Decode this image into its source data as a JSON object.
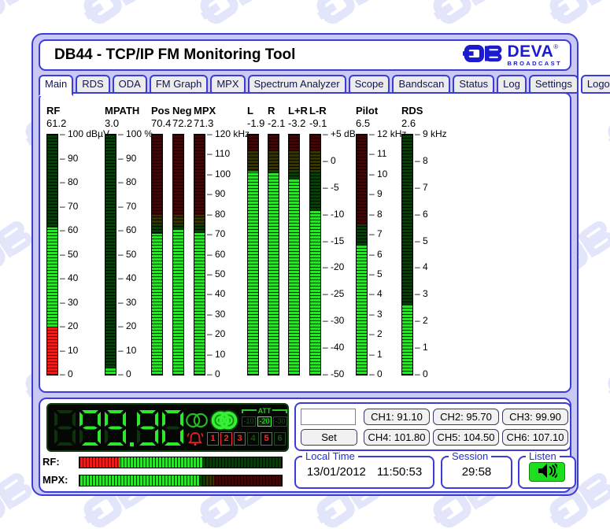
{
  "window_title": "DB44 - TCP/IP FM Monitoring Tool",
  "logo": {
    "brand": "DEVA",
    "reg": "®",
    "sub": "BROADCAST"
  },
  "tabs": {
    "items": [
      {
        "label": "Main",
        "active": true
      },
      {
        "label": "RDS",
        "active": false
      },
      {
        "label": "ODA",
        "active": false
      },
      {
        "label": "FM Graph",
        "active": false
      },
      {
        "label": "MPX",
        "active": false
      },
      {
        "label": "Spectrum Analyzer",
        "active": false
      },
      {
        "label": "Scope",
        "active": false
      },
      {
        "label": "Bandscan",
        "active": false
      },
      {
        "label": "Status",
        "active": false
      },
      {
        "label": "Log",
        "active": false
      },
      {
        "label": "Settings",
        "active": false
      }
    ],
    "logout": {
      "label": "Logout"
    }
  },
  "meters": [
    {
      "id": "rf",
      "label": "RF",
      "value_display": "61.2",
      "value": 61.2,
      "ticks": [
        100,
        90,
        80,
        70,
        60,
        50,
        40,
        30,
        20,
        10,
        0
      ],
      "tick_labels": [
        "100 dBµV",
        "90",
        "80",
        "70",
        "60",
        "50",
        "40",
        "30",
        "20",
        "10",
        "0"
      ],
      "zones": [
        {
          "from": 0,
          "to": 20,
          "color": "red"
        },
        {
          "from": 20,
          "to": 100,
          "color": "green"
        }
      ]
    },
    {
      "id": "mpath",
      "label": "MPATH",
      "value_display": "3.0",
      "value": 3.0,
      "ticks": [
        100,
        90,
        80,
        70,
        60,
        50,
        40,
        30,
        20,
        10,
        0
      ],
      "tick_labels": [
        "100 %",
        "90",
        "80",
        "70",
        "60",
        "50",
        "40",
        "30",
        "20",
        "10",
        "0"
      ],
      "zones": [
        {
          "from": 0,
          "to": 100,
          "color": "green"
        }
      ]
    },
    {
      "id": "pos",
      "label": "Pos",
      "value_display": "70.4",
      "value": 70.4,
      "ticks": [
        120,
        110,
        100,
        90,
        80,
        70,
        60,
        50,
        40,
        30,
        20,
        10,
        0
      ],
      "tick_labels": null,
      "zones": [
        {
          "from": 0,
          "to": 75,
          "color": "green"
        },
        {
          "from": 75,
          "to": 80,
          "color": "yellow"
        },
        {
          "from": 80,
          "to": 120,
          "color": "red"
        }
      ]
    },
    {
      "id": "neg",
      "label": "Neg",
      "value_display": "72.2",
      "value": 72.2,
      "ticks": [
        120,
        110,
        100,
        90,
        80,
        70,
        60,
        50,
        40,
        30,
        20,
        10,
        0
      ],
      "tick_labels": null,
      "zones": [
        {
          "from": 0,
          "to": 75,
          "color": "green"
        },
        {
          "from": 75,
          "to": 80,
          "color": "yellow"
        },
        {
          "from": 80,
          "to": 120,
          "color": "red"
        }
      ]
    },
    {
      "id": "mpx",
      "label": "MPX",
      "value_display": "71.3",
      "value": 71.3,
      "ticks": [
        120,
        110,
        100,
        90,
        80,
        70,
        60,
        50,
        40,
        30,
        20,
        10,
        0
      ],
      "tick_labels": [
        "120 kHz",
        "110",
        "100",
        "90",
        "80",
        "70",
        "60",
        "50",
        "40",
        "30",
        "20",
        "10",
        "0"
      ],
      "zones": [
        {
          "from": 0,
          "to": 75,
          "color": "green"
        },
        {
          "from": 75,
          "to": 80,
          "color": "yellow"
        },
        {
          "from": 80,
          "to": 120,
          "color": "red"
        }
      ]
    },
    {
      "id": "l",
      "label": "L",
      "value_display": "-1.9",
      "value": -1.9,
      "ticks": [
        5,
        0,
        -5,
        -10,
        -15,
        -20,
        -25,
        -30,
        -40,
        -50
      ],
      "tick_labels": null,
      "zones": [
        {
          "from": -50,
          "to": -2,
          "color": "green"
        },
        {
          "from": -2,
          "to": 2,
          "color": "yellow"
        },
        {
          "from": 2,
          "to": 5,
          "color": "red"
        }
      ]
    },
    {
      "id": "r",
      "label": "R",
      "value_display": "-2.1",
      "value": -2.1,
      "ticks": [
        5,
        0,
        -5,
        -10,
        -15,
        -20,
        -25,
        -30,
        -40,
        -50
      ],
      "tick_labels": null,
      "zones": [
        {
          "from": -50,
          "to": -2,
          "color": "green"
        },
        {
          "from": -2,
          "to": 2,
          "color": "yellow"
        },
        {
          "from": 2,
          "to": 5,
          "color": "red"
        }
      ]
    },
    {
      "id": "l+r",
      "label": "L+R",
      "value_display": "-3.2",
      "value": -3.2,
      "ticks": [
        5,
        0,
        -5,
        -10,
        -15,
        -20,
        -25,
        -30,
        -40,
        -50
      ],
      "tick_labels": null,
      "zones": [
        {
          "from": -50,
          "to": -2,
          "color": "green"
        },
        {
          "from": -2,
          "to": 2,
          "color": "yellow"
        },
        {
          "from": 2,
          "to": 5,
          "color": "red"
        }
      ]
    },
    {
      "id": "l-r",
      "label": "L-R",
      "value_display": "-9.1",
      "value": -9.1,
      "ticks": [
        5,
        0,
        -5,
        -10,
        -15,
        -20,
        -25,
        -30,
        -40,
        -50
      ],
      "tick_labels": [
        "+5 dB",
        "0",
        "-5",
        "-10",
        "-15",
        "-20",
        "-25",
        "-30",
        "-40",
        "-50"
      ],
      "zones": [
        {
          "from": -50,
          "to": -2,
          "color": "green"
        },
        {
          "from": -2,
          "to": 2,
          "color": "yellow"
        },
        {
          "from": 2,
          "to": 5,
          "color": "red"
        }
      ]
    },
    {
      "id": "pilot",
      "label": "Pilot",
      "value_display": "6.5",
      "value": 6.5,
      "ticks": [
        12,
        11,
        10,
        9,
        8,
        7,
        6,
        5,
        4,
        3,
        2,
        1,
        0
      ],
      "tick_labels": [
        "12 kHz",
        "11",
        "10",
        "9",
        "8",
        "7",
        "6",
        "5",
        "4",
        "3",
        "2",
        "1",
        "0"
      ],
      "zones": [
        {
          "from": 0,
          "to": 7.5,
          "color": "green"
        },
        {
          "from": 7.5,
          "to": 12,
          "color": "red"
        }
      ]
    },
    {
      "id": "rds",
      "label": "RDS",
      "value_display": "2.6",
      "value": 2.6,
      "ticks": [
        9,
        8,
        7,
        6,
        5,
        4,
        3,
        2,
        1,
        0
      ],
      "tick_labels": [
        "9 kHz",
        "8",
        "7",
        "6",
        "5",
        "4",
        "3",
        "2",
        "1",
        "0"
      ],
      "zones": [
        {
          "from": 0,
          "to": 9,
          "color": "green"
        }
      ]
    }
  ],
  "led": {
    "frequency": "99.90",
    "indicators": [
      {
        "name": "mono-indicator",
        "active": false
      },
      {
        "name": "stereo-indicator",
        "active": true
      }
    ],
    "att": {
      "label": "ATT",
      "options": [
        {
          "label": "-10",
          "active": false
        },
        {
          "label": "-20",
          "active": true
        },
        {
          "label": "-30",
          "active": false
        }
      ]
    },
    "alarm_bell": {
      "active": true
    },
    "alarms": [
      {
        "label": "1",
        "active": true
      },
      {
        "label": "2",
        "active": true
      },
      {
        "label": "3",
        "active": true
      },
      {
        "label": "4",
        "active": false
      },
      {
        "label": "5",
        "active": true
      },
      {
        "label": "6",
        "active": false
      }
    ]
  },
  "hbars": [
    {
      "id": "rf",
      "label": "RF:",
      "value": 61.2,
      "min": 0,
      "max": 100,
      "zones": [
        {
          "from": 0,
          "to": 20,
          "color": "red"
        },
        {
          "from": 20,
          "to": 100,
          "color": "green"
        }
      ]
    },
    {
      "id": "mpx",
      "label": "MPX:",
      "value": 71.3,
      "min": 0,
      "max": 120,
      "zones": [
        {
          "from": 0,
          "to": 75,
          "color": "green"
        },
        {
          "from": 75,
          "to": 80,
          "color": "yellow"
        },
        {
          "from": 80,
          "to": 120,
          "color": "red"
        }
      ]
    }
  ],
  "tuner": {
    "frequency_input": {
      "value": "",
      "placeholder": ""
    },
    "set_button": "Set",
    "channels": [
      {
        "label": "CH1: 91.10"
      },
      {
        "label": "CH2: 95.70"
      },
      {
        "label": "CH3: 99.90"
      },
      {
        "label": "CH4: 101.80"
      },
      {
        "label": "CH5: 104.50"
      },
      {
        "label": "CH6: 107.10"
      }
    ]
  },
  "status_groups": {
    "local_time": {
      "label": "Local Time",
      "date": "13/01/2012",
      "time": "11:50:53"
    },
    "session": {
      "label": "Session",
      "value": "29:58"
    },
    "listen": {
      "label": "Listen"
    }
  },
  "colors": {
    "accent_blue": "#3c3cd8",
    "window_fill": "#c9c9f4",
    "meter_green": "#2ce22c",
    "meter_red": "#ea1c1c",
    "meter_yellow": "#c8c11c",
    "led_green": "#2ee82e",
    "led_dim_green": "#1c521c",
    "alarm_red": "#ff2a2a",
    "listen_green": "#1fdd1f"
  }
}
